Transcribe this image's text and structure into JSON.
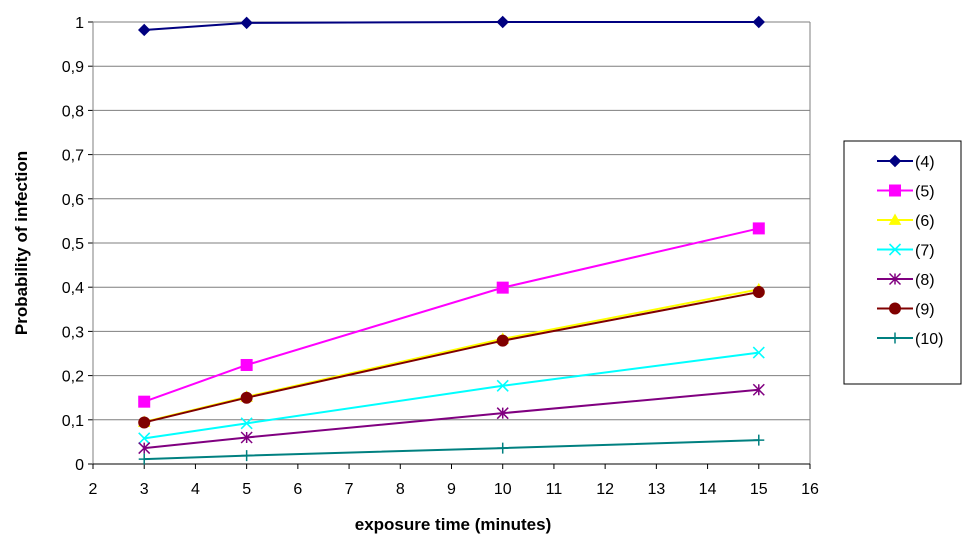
{
  "chart_data": {
    "type": "line",
    "title": "",
    "xlabel": "exposure time (minutes)",
    "ylabel": "Probability of infection",
    "xlim": [
      2,
      16
    ],
    "ylim": [
      0,
      1
    ],
    "xticks": [
      2,
      3,
      4,
      5,
      6,
      7,
      8,
      9,
      10,
      11,
      12,
      13,
      14,
      15,
      16
    ],
    "yticks": [
      "0",
      "0,1",
      "0,2",
      "0,3",
      "0,4",
      "0,5",
      "0,6",
      "0,7",
      "0,8",
      "0,9",
      "1"
    ],
    "grid": "horizontal",
    "legend_position": "right",
    "x": [
      3,
      5,
      10,
      15
    ],
    "series": [
      {
        "name": "(4)",
        "values": [
          0.982,
          0.998,
          1.0,
          1.0
        ],
        "color": "#000080",
        "marker": "diamond"
      },
      {
        "name": "(5)",
        "values": [
          0.141,
          0.224,
          0.399,
          0.533
        ],
        "color": "#ff00ff",
        "marker": "square"
      },
      {
        "name": "(6)",
        "values": [
          0.095,
          0.152,
          0.283,
          0.395
        ],
        "color": "#ffff00",
        "marker": "triangle"
      },
      {
        "name": "(7)",
        "values": [
          0.058,
          0.092,
          0.177,
          0.252
        ],
        "color": "#00ffff",
        "marker": "x"
      },
      {
        "name": "(8)",
        "values": [
          0.036,
          0.06,
          0.115,
          0.168
        ],
        "color": "#800080",
        "marker": "star"
      },
      {
        "name": "(9)",
        "values": [
          0.094,
          0.15,
          0.279,
          0.389
        ],
        "color": "#800000",
        "marker": "circle"
      },
      {
        "name": "(10)",
        "values": [
          0.011,
          0.019,
          0.036,
          0.054
        ],
        "color": "#008080",
        "marker": "plus"
      }
    ]
  }
}
